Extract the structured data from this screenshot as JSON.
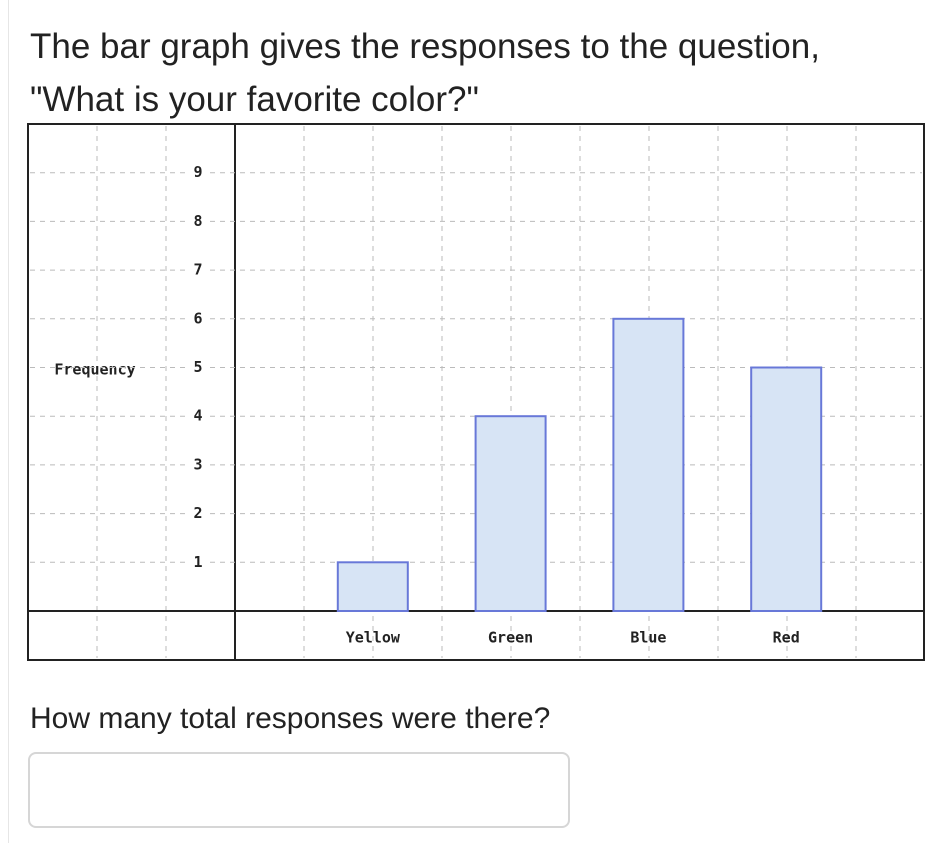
{
  "question": "The bar graph gives the responses to the question, \"What is your favorite color?\"",
  "chart_data": {
    "type": "bar",
    "ylabel": "Frequency",
    "categories": [
      "Yellow",
      "Green",
      "Blue",
      "Red"
    ],
    "values": [
      1,
      4,
      6,
      5
    ],
    "color": "#d7e4f5",
    "edge_color": "#6878d8",
    "ylim": [
      0,
      10
    ],
    "yticks": [
      1,
      2,
      3,
      4,
      5,
      6,
      7,
      8,
      9
    ],
    "grid": true
  },
  "prompt": "How many total responses were there?"
}
